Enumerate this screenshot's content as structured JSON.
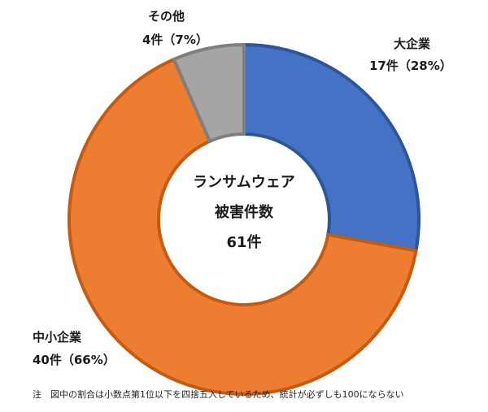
{
  "chart_data": {
    "type": "pie",
    "variant": "donut",
    "center_text": [
      "ランサムウェア",
      "被害件数",
      "61件"
    ],
    "slices": [
      {
        "category": "大企業",
        "value": 17,
        "percent": 28,
        "label_value": "17件（28%）",
        "color": "#4472C4"
      },
      {
        "category": "中小企業",
        "value": 40,
        "percent": 66,
        "label_value": "40件（66%）",
        "color": "#ED7D31"
      },
      {
        "category": "その他",
        "value": 4,
        "percent": 7,
        "label_value": "4件（7%）",
        "color": "#A5A5A5"
      }
    ],
    "total": 61
  },
  "footnote": "注　図中の割合は小数点第1位以下を四捨五入しているため、統計が必ずしも100にならない"
}
